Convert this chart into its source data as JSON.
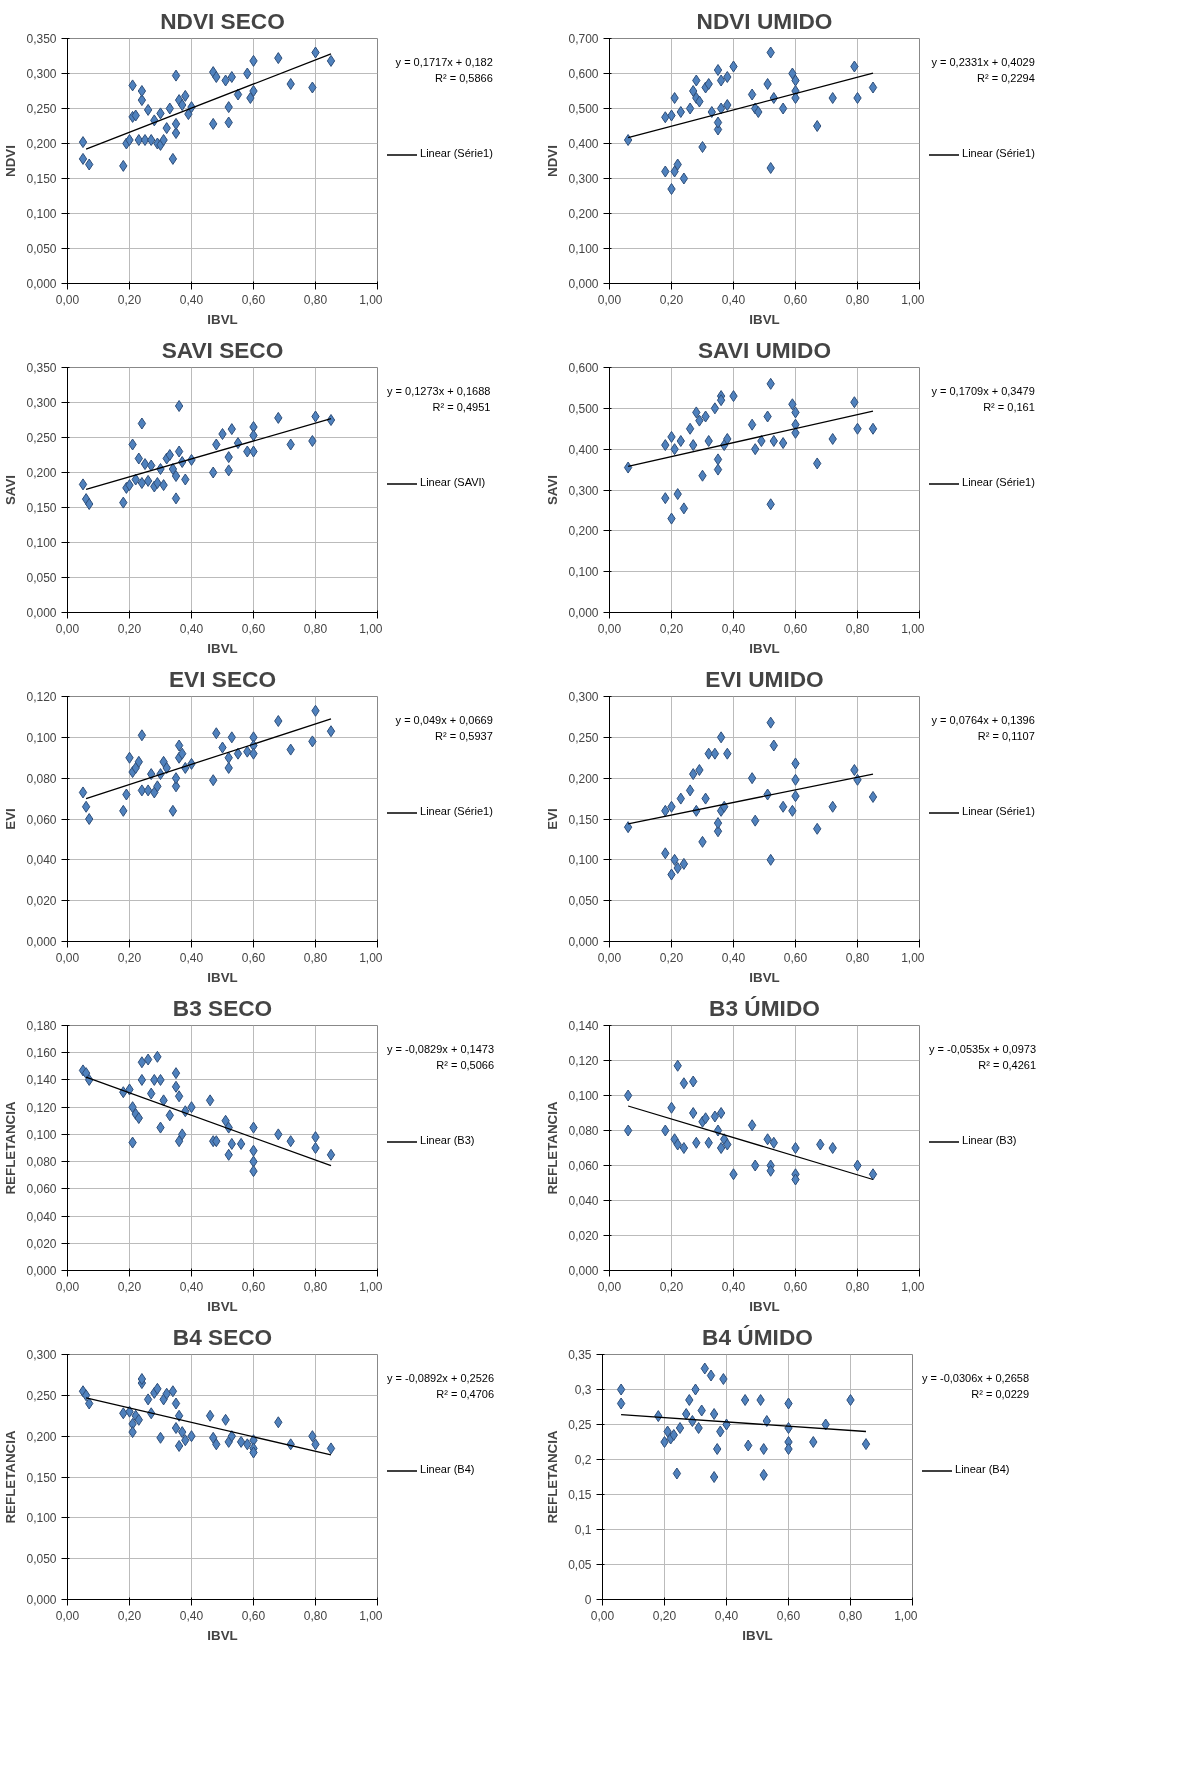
{
  "chart_data": [
    {
      "type": "scatter",
      "title": "NDVI SECO",
      "xlabel": "IBVL",
      "ylabel": "NDVI",
      "xlim": [
        0,
        1
      ],
      "xticks": [
        {
          "value": 0,
          "label": "0,00"
        },
        {
          "value": 0.2,
          "label": "0,20"
        },
        {
          "value": 0.4,
          "label": "0,40"
        },
        {
          "value": 0.6,
          "label": "0,60"
        },
        {
          "value": 0.8,
          "label": "0,80"
        },
        {
          "value": 1,
          "label": "1,00"
        }
      ],
      "ylim": [
        0,
        0.35
      ],
      "yticks": [
        {
          "value": 0,
          "label": "0,000"
        },
        {
          "value": 0.05,
          "label": "0,050"
        },
        {
          "value": 0.1,
          "label": "0,100"
        },
        {
          "value": 0.15,
          "label": "0,150"
        },
        {
          "value": 0.2,
          "label": "0,200"
        },
        {
          "value": 0.25,
          "label": "0,250"
        },
        {
          "value": 0.3,
          "label": "0,300"
        },
        {
          "value": 0.35,
          "label": "0,350"
        }
      ],
      "grid": true,
      "legend": "right",
      "marker": "diamond",
      "annotations": [
        "y = 0,1717x + 0,182",
        "R² = 0,5866"
      ],
      "series": [
        {
          "color": "#4f81bd",
          "x": [
            0.05,
            0.05,
            0.07,
            0.18,
            0.19,
            0.2,
            0.21,
            0.21,
            0.22,
            0.23,
            0.24,
            0.24,
            0.25,
            0.26,
            0.27,
            0.28,
            0.29,
            0.3,
            0.3,
            0.31,
            0.32,
            0.33,
            0.34,
            0.35,
            0.35,
            0.35,
            0.36,
            0.37,
            0.38,
            0.39,
            0.4,
            0.47,
            0.47,
            0.48,
            0.51,
            0.52,
            0.52,
            0.53,
            0.55,
            0.58,
            0.59,
            0.6,
            0.6,
            0.68,
            0.72,
            0.79,
            0.8,
            0.85
          ],
          "values": [
            0.202,
            0.178,
            0.17,
            0.168,
            0.2,
            0.205,
            0.283,
            0.238,
            0.24,
            0.205,
            0.262,
            0.275,
            0.205,
            0.248,
            0.205,
            0.233,
            0.2,
            0.198,
            0.243,
            0.205,
            0.222,
            0.25,
            0.178,
            0.215,
            0.228,
            0.297,
            0.262,
            0.255,
            0.268,
            0.242,
            0.252,
            0.228,
            0.302,
            0.295,
            0.29,
            0.23,
            0.252,
            0.295,
            0.27,
            0.3,
            0.265,
            0.318,
            0.275,
            0.322,
            0.285,
            0.28,
            0.33,
            0.318
          ]
        },
        {
          "type": "line",
          "name": "Linear (Série1)",
          "color": "#000000",
          "x": [
            0.06,
            0.85
          ],
          "values": [
            0.192,
            0.328
          ],
          "marker": "none"
        }
      ]
    },
    {
      "type": "scatter",
      "title": "NDVI UMIDO",
      "xlabel": "IBVL",
      "ylabel": "NDVI",
      "xlim": [
        0,
        1
      ],
      "xticks": [
        {
          "value": 0,
          "label": "0,00"
        },
        {
          "value": 0.2,
          "label": "0,20"
        },
        {
          "value": 0.4,
          "label": "0,40"
        },
        {
          "value": 0.6,
          "label": "0,60"
        },
        {
          "value": 0.8,
          "label": "0,80"
        },
        {
          "value": 1,
          "label": "1,00"
        }
      ],
      "ylim": [
        0,
        0.7
      ],
      "yticks": [
        {
          "value": 0,
          "label": "0,000"
        },
        {
          "value": 0.1,
          "label": "0,100"
        },
        {
          "value": 0.2,
          "label": "0,200"
        },
        {
          "value": 0.3,
          "label": "0,300"
        },
        {
          "value": 0.4,
          "label": "0,400"
        },
        {
          "value": 0.5,
          "label": "0,500"
        },
        {
          "value": 0.6,
          "label": "0,600"
        },
        {
          "value": 0.7,
          "label": "0,700"
        }
      ],
      "grid": true,
      "legend": "right",
      "marker": "diamond",
      "annotations": [
        "y = 0,2331x + 0,4029",
        "R² = 0,2294"
      ],
      "series": [
        {
          "color": "#4f81bd",
          "x": [
            0.06,
            0.18,
            0.18,
            0.2,
            0.2,
            0.21,
            0.21,
            0.22,
            0.23,
            0.24,
            0.26,
            0.27,
            0.28,
            0.28,
            0.29,
            0.3,
            0.31,
            0.32,
            0.33,
            0.35,
            0.35,
            0.35,
            0.36,
            0.36,
            0.38,
            0.38,
            0.4,
            0.46,
            0.47,
            0.48,
            0.51,
            0.52,
            0.52,
            0.53,
            0.56,
            0.59,
            0.6,
            0.6,
            0.6,
            0.67,
            0.72,
            0.79,
            0.8,
            0.85
          ],
          "values": [
            0.41,
            0.32,
            0.475,
            0.27,
            0.48,
            0.53,
            0.32,
            0.34,
            0.49,
            0.3,
            0.5,
            0.55,
            0.58,
            0.53,
            0.52,
            0.39,
            0.56,
            0.57,
            0.49,
            0.44,
            0.46,
            0.61,
            0.58,
            0.5,
            0.51,
            0.59,
            0.62,
            0.54,
            0.5,
            0.49,
            0.57,
            0.33,
            0.66,
            0.53,
            0.5,
            0.6,
            0.58,
            0.55,
            0.53,
            0.45,
            0.53,
            0.62,
            0.53,
            0.56
          ]
        },
        {
          "type": "line",
          "name": "Linear (Série1)",
          "color": "#000000",
          "x": [
            0.06,
            0.85
          ],
          "values": [
            0.417,
            0.601
          ],
          "marker": "none"
        }
      ]
    },
    {
      "type": "scatter",
      "title": "SAVI SECO",
      "xlabel": "IBVL",
      "ylabel": "SAVI",
      "xlim": [
        0,
        1
      ],
      "xticks": [
        {
          "value": 0,
          "label": "0,00"
        },
        {
          "value": 0.2,
          "label": "0,20"
        },
        {
          "value": 0.4,
          "label": "0,40"
        },
        {
          "value": 0.6,
          "label": "0,60"
        },
        {
          "value": 0.8,
          "label": "0,80"
        },
        {
          "value": 1,
          "label": "1,00"
        }
      ],
      "ylim": [
        0,
        0.35
      ],
      "yticks": [
        {
          "value": 0,
          "label": "0,000"
        },
        {
          "value": 0.05,
          "label": "0,050"
        },
        {
          "value": 0.1,
          "label": "0,100"
        },
        {
          "value": 0.15,
          "label": "0,150"
        },
        {
          "value": 0.2,
          "label": "0,200"
        },
        {
          "value": 0.25,
          "label": "0,250"
        },
        {
          "value": 0.3,
          "label": "0,300"
        },
        {
          "value": 0.35,
          "label": "0,350"
        }
      ],
      "grid": true,
      "legend": "right",
      "marker": "diamond",
      "annotations": [
        "y = 0,1273x + 0,1688",
        "R² = 0,4951"
      ],
      "series": [
        {
          "color": "#4f81bd",
          "x": [
            0.05,
            0.06,
            0.07,
            0.18,
            0.19,
            0.2,
            0.21,
            0.22,
            0.23,
            0.24,
            0.24,
            0.25,
            0.26,
            0.27,
            0.28,
            0.29,
            0.3,
            0.31,
            0.32,
            0.33,
            0.34,
            0.35,
            0.35,
            0.36,
            0.36,
            0.37,
            0.38,
            0.4,
            0.47,
            0.48,
            0.5,
            0.52,
            0.52,
            0.53,
            0.55,
            0.58,
            0.6,
            0.6,
            0.6,
            0.68,
            0.72,
            0.79,
            0.8,
            0.85
          ],
          "values": [
            0.183,
            0.162,
            0.155,
            0.157,
            0.178,
            0.182,
            0.24,
            0.19,
            0.22,
            0.27,
            0.185,
            0.212,
            0.188,
            0.21,
            0.18,
            0.185,
            0.205,
            0.182,
            0.22,
            0.225,
            0.205,
            0.163,
            0.195,
            0.295,
            0.23,
            0.215,
            0.19,
            0.218,
            0.2,
            0.24,
            0.255,
            0.203,
            0.222,
            0.262,
            0.242,
            0.23,
            0.265,
            0.253,
            0.23,
            0.278,
            0.24,
            0.245,
            0.28,
            0.275
          ]
        },
        {
          "type": "line",
          "name": "Linear (SAVI)",
          "color": "#000000",
          "x": [
            0.06,
            0.85
          ],
          "values": [
            0.176,
            0.277
          ],
          "marker": "none"
        }
      ]
    },
    {
      "type": "scatter",
      "title": "SAVI UMIDO",
      "xlabel": "IBVL",
      "ylabel": "SAVI",
      "xlim": [
        0,
        1
      ],
      "xticks": [
        {
          "value": 0,
          "label": "0,00"
        },
        {
          "value": 0.2,
          "label": "0,20"
        },
        {
          "value": 0.4,
          "label": "0,40"
        },
        {
          "value": 0.6,
          "label": "0,60"
        },
        {
          "value": 0.8,
          "label": "0,80"
        },
        {
          "value": 1,
          "label": "1,00"
        }
      ],
      "ylim": [
        0,
        0.6
      ],
      "yticks": [
        {
          "value": 0,
          "label": "0,000"
        },
        {
          "value": 0.1,
          "label": "0,100"
        },
        {
          "value": 0.2,
          "label": "0,200"
        },
        {
          "value": 0.3,
          "label": "0,300"
        },
        {
          "value": 0.4,
          "label": "0,400"
        },
        {
          "value": 0.5,
          "label": "0,500"
        },
        {
          "value": 0.6,
          "label": "0,600"
        }
      ],
      "grid": true,
      "legend": "right",
      "marker": "diamond",
      "annotations": [
        "y = 0,1709x + 0,3479",
        "R² = 0,161"
      ],
      "series": [
        {
          "color": "#4f81bd",
          "x": [
            0.06,
            0.18,
            0.18,
            0.2,
            0.2,
            0.21,
            0.22,
            0.23,
            0.24,
            0.26,
            0.27,
            0.28,
            0.29,
            0.3,
            0.31,
            0.32,
            0.34,
            0.35,
            0.35,
            0.36,
            0.36,
            0.37,
            0.38,
            0.4,
            0.46,
            0.47,
            0.49,
            0.51,
            0.52,
            0.52,
            0.53,
            0.56,
            0.59,
            0.6,
            0.6,
            0.6,
            0.67,
            0.72,
            0.79,
            0.8,
            0.85
          ],
          "values": [
            0.355,
            0.28,
            0.41,
            0.23,
            0.43,
            0.4,
            0.29,
            0.42,
            0.255,
            0.45,
            0.41,
            0.49,
            0.47,
            0.335,
            0.48,
            0.42,
            0.5,
            0.35,
            0.375,
            0.53,
            0.52,
            0.41,
            0.425,
            0.53,
            0.46,
            0.4,
            0.42,
            0.48,
            0.265,
            0.56,
            0.42,
            0.415,
            0.51,
            0.49,
            0.46,
            0.44,
            0.365,
            0.425,
            0.515,
            0.45,
            0.45
          ]
        },
        {
          "type": "line",
          "name": "Linear (Série1)",
          "color": "#000000",
          "x": [
            0.06,
            0.85
          ],
          "values": [
            0.358,
            0.493
          ],
          "marker": "none"
        }
      ]
    },
    {
      "type": "scatter",
      "title": "EVI SECO",
      "xlabel": "IBVL",
      "ylabel": "EVI",
      "xlim": [
        0,
        1
      ],
      "xticks": [
        {
          "value": 0,
          "label": "0,00"
        },
        {
          "value": 0.2,
          "label": "0,20"
        },
        {
          "value": 0.4,
          "label": "0,40"
        },
        {
          "value": 0.6,
          "label": "0,60"
        },
        {
          "value": 0.8,
          "label": "0,80"
        },
        {
          "value": 1,
          "label": "1,00"
        }
      ],
      "ylim": [
        0,
        0.12
      ],
      "yticks": [
        {
          "value": 0,
          "label": "0,000"
        },
        {
          "value": 0.02,
          "label": "0,020"
        },
        {
          "value": 0.04,
          "label": "0,040"
        },
        {
          "value": 0.06,
          "label": "0,060"
        },
        {
          "value": 0.08,
          "label": "0,080"
        },
        {
          "value": 0.1,
          "label": "0,100"
        },
        {
          "value": 0.12,
          "label": "0,120"
        }
      ],
      "grid": true,
      "legend": "right",
      "marker": "diamond",
      "annotations": [
        "y = 0,049x + 0,0669",
        "R² = 0,5937"
      ],
      "series": [
        {
          "color": "#4f81bd",
          "x": [
            0.05,
            0.06,
            0.07,
            0.18,
            0.19,
            0.2,
            0.21,
            0.22,
            0.23,
            0.24,
            0.24,
            0.26,
            0.27,
            0.28,
            0.29,
            0.3,
            0.31,
            0.32,
            0.34,
            0.35,
            0.35,
            0.36,
            0.36,
            0.37,
            0.38,
            0.4,
            0.47,
            0.48,
            0.5,
            0.52,
            0.52,
            0.53,
            0.55,
            0.58,
            0.6,
            0.6,
            0.6,
            0.68,
            0.72,
            0.79,
            0.8,
            0.85
          ],
          "values": [
            0.073,
            0.066,
            0.06,
            0.064,
            0.072,
            0.09,
            0.083,
            0.085,
            0.088,
            0.101,
            0.074,
            0.074,
            0.082,
            0.073,
            0.076,
            0.082,
            0.088,
            0.085,
            0.064,
            0.076,
            0.08,
            0.096,
            0.09,
            0.092,
            0.085,
            0.087,
            0.079,
            0.102,
            0.095,
            0.085,
            0.09,
            0.1,
            0.092,
            0.093,
            0.1,
            0.096,
            0.092,
            0.108,
            0.094,
            0.098,
            0.113,
            0.103
          ]
        },
        {
          "type": "line",
          "name": "Linear (Série1)",
          "color": "#000000",
          "x": [
            0.06,
            0.85
          ],
          "values": [
            0.07,
            0.109
          ],
          "marker": "none"
        }
      ]
    },
    {
      "type": "scatter",
      "title": "EVI UMIDO",
      "xlabel": "IBVL",
      "ylabel": "EVI",
      "xlim": [
        0,
        1
      ],
      "xticks": [
        {
          "value": 0,
          "label": "0,00"
        },
        {
          "value": 0.2,
          "label": "0,20"
        },
        {
          "value": 0.4,
          "label": "0,40"
        },
        {
          "value": 0.6,
          "label": "0,60"
        },
        {
          "value": 0.8,
          "label": "0,80"
        },
        {
          "value": 1,
          "label": "1,00"
        }
      ],
      "ylim": [
        0,
        0.3
      ],
      "yticks": [
        {
          "value": 0,
          "label": "0,000"
        },
        {
          "value": 0.05,
          "label": "0,050"
        },
        {
          "value": 0.1,
          "label": "0,100"
        },
        {
          "value": 0.15,
          "label": "0,150"
        },
        {
          "value": 0.2,
          "label": "0,200"
        },
        {
          "value": 0.25,
          "label": "0,250"
        },
        {
          "value": 0.3,
          "label": "0,300"
        }
      ],
      "grid": true,
      "legend": "right",
      "marker": "diamond",
      "annotations": [
        "y = 0,0764x + 0,1396",
        "R² = 0,1107"
      ],
      "series": [
        {
          "color": "#4f81bd",
          "x": [
            0.06,
            0.18,
            0.18,
            0.2,
            0.2,
            0.21,
            0.22,
            0.23,
            0.24,
            0.26,
            0.27,
            0.28,
            0.29,
            0.3,
            0.31,
            0.32,
            0.34,
            0.35,
            0.35,
            0.36,
            0.36,
            0.37,
            0.38,
            0.46,
            0.47,
            0.51,
            0.52,
            0.52,
            0.53,
            0.56,
            0.59,
            0.6,
            0.6,
            0.6,
            0.67,
            0.72,
            0.79,
            0.8,
            0.85
          ],
          "values": [
            0.14,
            0.108,
            0.16,
            0.082,
            0.165,
            0.1,
            0.09,
            0.175,
            0.095,
            0.185,
            0.205,
            0.16,
            0.21,
            0.122,
            0.175,
            0.23,
            0.23,
            0.135,
            0.145,
            0.25,
            0.16,
            0.165,
            0.23,
            0.2,
            0.148,
            0.18,
            0.1,
            0.268,
            0.24,
            0.165,
            0.16,
            0.218,
            0.198,
            0.178,
            0.138,
            0.165,
            0.21,
            0.198,
            0.177
          ]
        },
        {
          "type": "line",
          "name": "Linear (Série1)",
          "color": "#000000",
          "x": [
            0.06,
            0.85
          ],
          "values": [
            0.144,
            0.205
          ],
          "marker": "none"
        }
      ]
    },
    {
      "type": "scatter",
      "title": "B3 SECO",
      "xlabel": "IBVL",
      "ylabel": "REFLETANCIA",
      "xlim": [
        0,
        1
      ],
      "xticks": [
        {
          "value": 0,
          "label": "0,00"
        },
        {
          "value": 0.2,
          "label": "0,20"
        },
        {
          "value": 0.4,
          "label": "0,40"
        },
        {
          "value": 0.6,
          "label": "0,60"
        },
        {
          "value": 0.8,
          "label": "0,80"
        },
        {
          "value": 1,
          "label": "1,00"
        }
      ],
      "ylim": [
        0,
        0.18
      ],
      "yticks": [
        {
          "value": 0,
          "label": "0,000"
        },
        {
          "value": 0.02,
          "label": "0,020"
        },
        {
          "value": 0.04,
          "label": "0,040"
        },
        {
          "value": 0.06,
          "label": "0,060"
        },
        {
          "value": 0.08,
          "label": "0,080"
        },
        {
          "value": 0.1,
          "label": "0,100"
        },
        {
          "value": 0.12,
          "label": "0,120"
        },
        {
          "value": 0.14,
          "label": "0,140"
        },
        {
          "value": 0.16,
          "label": "0,160"
        },
        {
          "value": 0.18,
          "label": "0,180"
        }
      ],
      "grid": true,
      "legend": "right",
      "marker": "diamond",
      "annotations": [
        "y = -0,0829x + 0,1473",
        "R² = 0,5066"
      ],
      "series": [
        {
          "color": "#4f81bd",
          "x": [
            0.05,
            0.06,
            0.07,
            0.18,
            0.2,
            0.21,
            0.21,
            0.22,
            0.23,
            0.24,
            0.24,
            0.26,
            0.27,
            0.28,
            0.29,
            0.3,
            0.3,
            0.31,
            0.33,
            0.35,
            0.35,
            0.36,
            0.36,
            0.37,
            0.38,
            0.4,
            0.46,
            0.47,
            0.48,
            0.51,
            0.52,
            0.52,
            0.53,
            0.56,
            0.6,
            0.6,
            0.6,
            0.6,
            0.68,
            0.72,
            0.8,
            0.8,
            0.85
          ],
          "values": [
            0.147,
            0.145,
            0.14,
            0.131,
            0.133,
            0.12,
            0.094,
            0.115,
            0.112,
            0.153,
            0.14,
            0.155,
            0.13,
            0.14,
            0.157,
            0.105,
            0.14,
            0.125,
            0.114,
            0.145,
            0.135,
            0.095,
            0.128,
            0.1,
            0.117,
            0.12,
            0.125,
            0.095,
            0.095,
            0.11,
            0.085,
            0.105,
            0.093,
            0.093,
            0.105,
            0.088,
            0.08,
            0.073,
            0.1,
            0.095,
            0.098,
            0.09,
            0.085
          ]
        },
        {
          "type": "line",
          "name": "Linear (B3)",
          "color": "#000000",
          "x": [
            0.06,
            0.85
          ],
          "values": [
            0.142,
            0.077
          ],
          "marker": "none"
        }
      ]
    },
    {
      "type": "scatter",
      "title": "B3 ÚMIDO",
      "xlabel": "IBVL",
      "ylabel": "REFLETANCIA",
      "xlim": [
        0,
        1
      ],
      "xticks": [
        {
          "value": 0,
          "label": "0,00"
        },
        {
          "value": 0.2,
          "label": "0,20"
        },
        {
          "value": 0.4,
          "label": "0,40"
        },
        {
          "value": 0.6,
          "label": "0,60"
        },
        {
          "value": 0.8,
          "label": "0,80"
        },
        {
          "value": 1,
          "label": "1,00"
        }
      ],
      "ylim": [
        0,
        0.14
      ],
      "yticks": [
        {
          "value": 0,
          "label": "0,000"
        },
        {
          "value": 0.02,
          "label": "0,020"
        },
        {
          "value": 0.04,
          "label": "0,040"
        },
        {
          "value": 0.06,
          "label": "0,060"
        },
        {
          "value": 0.08,
          "label": "0,080"
        },
        {
          "value": 0.1,
          "label": "0,100"
        },
        {
          "value": 0.12,
          "label": "0,120"
        },
        {
          "value": 0.14,
          "label": "0,140"
        }
      ],
      "grid": true,
      "legend": "right",
      "marker": "diamond",
      "annotations": [
        "y = -0,0535x + 0,0973",
        "R² = 0,4261"
      ],
      "series": [
        {
          "color": "#4f81bd",
          "x": [
            0.06,
            0.06,
            0.18,
            0.2,
            0.21,
            0.22,
            0.22,
            0.24,
            0.24,
            0.27,
            0.27,
            0.28,
            0.3,
            0.31,
            0.32,
            0.34,
            0.35,
            0.36,
            0.36,
            0.37,
            0.38,
            0.4,
            0.46,
            0.47,
            0.51,
            0.52,
            0.52,
            0.53,
            0.6,
            0.6,
            0.6,
            0.68,
            0.72,
            0.8,
            0.85
          ],
          "values": [
            0.1,
            0.08,
            0.08,
            0.093,
            0.075,
            0.117,
            0.072,
            0.107,
            0.07,
            0.108,
            0.09,
            0.073,
            0.085,
            0.087,
            0.073,
            0.088,
            0.08,
            0.09,
            0.07,
            0.075,
            0.072,
            0.055,
            0.083,
            0.06,
            0.075,
            0.06,
            0.057,
            0.073,
            0.07,
            0.055,
            0.052,
            0.072,
            0.07,
            0.06,
            0.055
          ]
        },
        {
          "type": "line",
          "name": "Linear (B3)",
          "color": "#000000",
          "x": [
            0.06,
            0.85
          ],
          "values": [
            0.094,
            0.052
          ],
          "marker": "none"
        }
      ]
    },
    {
      "type": "scatter",
      "title": "B4 SECO",
      "xlabel": "IBVL",
      "ylabel": "REFLETANCIA",
      "xlim": [
        0,
        1
      ],
      "xticks": [
        {
          "value": 0,
          "label": "0,00"
        },
        {
          "value": 0.2,
          "label": "0,20"
        },
        {
          "value": 0.4,
          "label": "0,40"
        },
        {
          "value": 0.6,
          "label": "0,60"
        },
        {
          "value": 0.8,
          "label": "0,80"
        },
        {
          "value": 1,
          "label": "1,00"
        }
      ],
      "ylim": [
        0,
        0.3
      ],
      "yticks": [
        {
          "value": 0,
          "label": "0,000"
        },
        {
          "value": 0.05,
          "label": "0,050"
        },
        {
          "value": 0.1,
          "label": "0,100"
        },
        {
          "value": 0.15,
          "label": "0,150"
        },
        {
          "value": 0.2,
          "label": "0,200"
        },
        {
          "value": 0.25,
          "label": "0,250"
        },
        {
          "value": 0.3,
          "label": "0,300"
        }
      ],
      "grid": true,
      "legend": "right",
      "marker": "diamond",
      "annotations": [
        "y = -0,0892x + 0,2526",
        "R² = 0,4706"
      ],
      "series": [
        {
          "color": "#4f81bd",
          "x": [
            0.05,
            0.06,
            0.07,
            0.18,
            0.2,
            0.21,
            0.21,
            0.22,
            0.23,
            0.24,
            0.24,
            0.26,
            0.27,
            0.28,
            0.29,
            0.3,
            0.31,
            0.32,
            0.34,
            0.35,
            0.35,
            0.36,
            0.36,
            0.37,
            0.38,
            0.4,
            0.46,
            0.47,
            0.48,
            0.51,
            0.52,
            0.53,
            0.56,
            0.58,
            0.6,
            0.6,
            0.6,
            0.68,
            0.72,
            0.79,
            0.8,
            0.85
          ],
          "values": [
            0.255,
            0.25,
            0.24,
            0.228,
            0.23,
            0.215,
            0.205,
            0.225,
            0.22,
            0.265,
            0.27,
            0.245,
            0.228,
            0.253,
            0.258,
            0.198,
            0.245,
            0.252,
            0.255,
            0.21,
            0.24,
            0.188,
            0.225,
            0.205,
            0.195,
            0.2,
            0.225,
            0.198,
            0.19,
            0.22,
            0.193,
            0.2,
            0.193,
            0.19,
            0.195,
            0.185,
            0.18,
            0.217,
            0.19,
            0.2,
            0.19,
            0.185
          ]
        },
        {
          "type": "line",
          "name": "Linear (B4)",
          "color": "#000000",
          "x": [
            0.06,
            0.85
          ],
          "values": [
            0.247,
            0.177
          ],
          "marker": "none"
        }
      ]
    },
    {
      "type": "scatter",
      "title": "B4 ÚMIDO",
      "xlabel": "IBVL",
      "ylabel": "REFLETANCIA",
      "xlim": [
        0,
        1
      ],
      "xticks": [
        {
          "value": 0,
          "label": "0,00"
        },
        {
          "value": 0.2,
          "label": "0,20"
        },
        {
          "value": 0.4,
          "label": "0,40"
        },
        {
          "value": 0.6,
          "label": "0,60"
        },
        {
          "value": 0.8,
          "label": "0,80"
        },
        {
          "value": 1,
          "label": "1,00"
        }
      ],
      "ylim": [
        0,
        0.35
      ],
      "yticks": [
        0,
        {
          "value": 0.05,
          "label": "0,05"
        },
        {
          "value": 0.1,
          "label": "0,1"
        },
        {
          "value": 0.15,
          "label": "0,15"
        },
        {
          "value": 0.2,
          "label": "0,2"
        },
        {
          "value": 0.25,
          "label": "0,25"
        },
        {
          "value": 0.3,
          "label": "0,3"
        },
        {
          "value": 0.35,
          "label": "0,35"
        }
      ],
      "grid": true,
      "legend": "right",
      "marker": "diamond",
      "annotations": [
        "y = -0,0306x + 0,2658",
        "R² = 0,0229"
      ],
      "series": [
        {
          "color": "#4f81bd",
          "x": [
            0.06,
            0.06,
            0.18,
            0.2,
            0.21,
            0.22,
            0.23,
            0.24,
            0.25,
            0.27,
            0.28,
            0.29,
            0.3,
            0.31,
            0.32,
            0.33,
            0.35,
            0.36,
            0.36,
            0.37,
            0.38,
            0.39,
            0.4,
            0.46,
            0.47,
            0.51,
            0.52,
            0.52,
            0.53,
            0.6,
            0.6,
            0.6,
            0.6,
            0.68,
            0.72,
            0.8,
            0.85
          ],
          "values": [
            0.3,
            0.28,
            0.262,
            0.225,
            0.24,
            0.23,
            0.235,
            0.18,
            0.245,
            0.265,
            0.285,
            0.255,
            0.3,
            0.245,
            0.27,
            0.33,
            0.32,
            0.265,
            0.175,
            0.215,
            0.24,
            0.315,
            0.25,
            0.285,
            0.22,
            0.285,
            0.215,
            0.178,
            0.255,
            0.28,
            0.245,
            0.225,
            0.215,
            0.225,
            0.25,
            0.285,
            0.222
          ]
        },
        {
          "type": "line",
          "name": "Linear (B4)",
          "color": "#000000",
          "x": [
            0.06,
            0.85
          ],
          "values": [
            0.264,
            0.24
          ],
          "marker": "none"
        }
      ]
    }
  ]
}
